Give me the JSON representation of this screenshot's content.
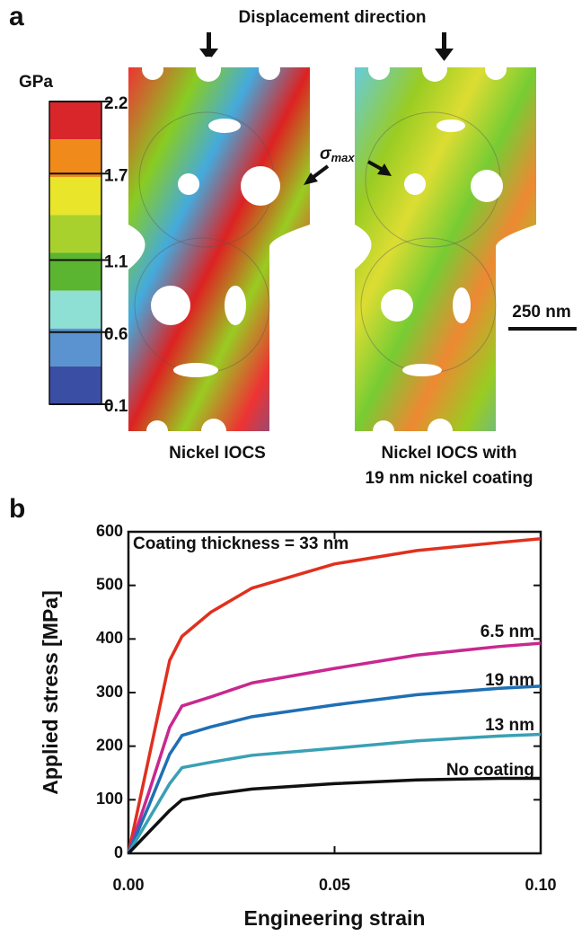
{
  "panel_labels": [
    "a",
    "b"
  ],
  "panel_a": {
    "title": "Displacement direction",
    "colorbar": {
      "unit": "GPa",
      "ticks": [
        2.2,
        1.7,
        1.1,
        0.6,
        0.1
      ]
    },
    "annotation": {
      "symbol": "σ",
      "subscript": "max"
    },
    "scale_bar": "250 nm",
    "captions": [
      "Nickel IOCS",
      "Nickel IOCS with",
      "19 nm nickel coating"
    ]
  },
  "chart_data": {
    "type": "line",
    "x_label": "Engineering strain",
    "y_label": "Applied stress [MPa]",
    "x": [
      0,
      0.005,
      0.01,
      0.013,
      0.02,
      0.03,
      0.05,
      0.07,
      0.09,
      0.1
    ],
    "series": [
      {
        "name": "Coating thickness = 33 nm",
        "color": "#e0301e",
        "values": [
          0,
          180,
          360,
          405,
          450,
          495,
          540,
          565,
          580,
          587
        ]
      },
      {
        "name": "6.5 nm",
        "color": "#c8288f",
        "values": [
          0,
          115,
          235,
          275,
          292,
          318,
          345,
          370,
          386,
          392
        ]
      },
      {
        "name": "19 nm",
        "color": "#1f6fb4",
        "values": [
          0,
          90,
          185,
          220,
          236,
          255,
          277,
          296,
          308,
          312
        ]
      },
      {
        "name": "13 nm",
        "color": "#3aa0b4",
        "values": [
          0,
          65,
          130,
          160,
          170,
          183,
          196,
          210,
          219,
          222
        ]
      },
      {
        "name": "No coating",
        "color": "#111111",
        "values": [
          0,
          40,
          80,
          100,
          110,
          120,
          130,
          137,
          140,
          140
        ]
      }
    ],
    "xlim": [
      0,
      0.1
    ],
    "xticks": [
      {
        "value": 0,
        "label": "0.00"
      },
      0.05,
      {
        "value": 0.1,
        "label": "0.10"
      }
    ],
    "ylim": [
      0,
      600
    ],
    "yticks": [
      0,
      100,
      200,
      300,
      400,
      500,
      600
    ]
  }
}
